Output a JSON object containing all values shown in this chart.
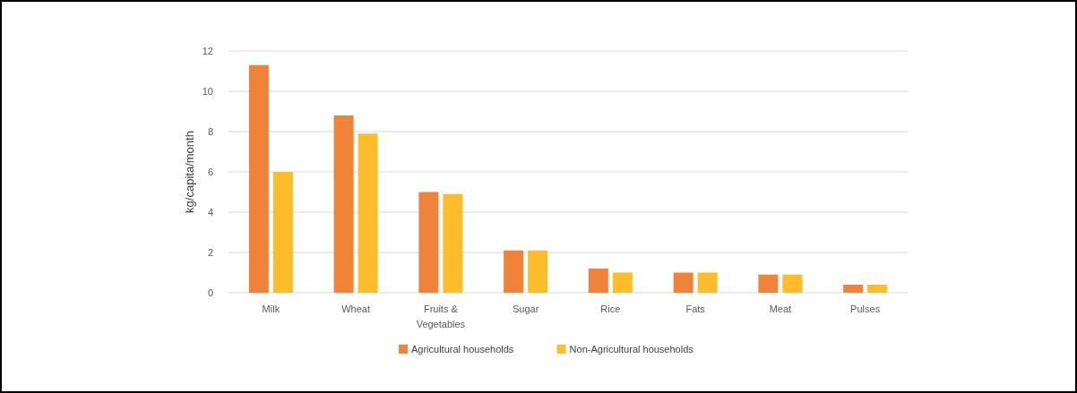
{
  "chart_data": {
    "type": "bar",
    "ylabel": "kg/capita/month",
    "categories": [
      "Milk",
      "Wheat",
      "Fruits & Vegetables",
      "Sugar",
      "Rice",
      "Fats",
      "Meat",
      "Pulses"
    ],
    "series": [
      {
        "name": "Agricultural households",
        "color": "#f0833a",
        "values": [
          11.3,
          8.8,
          5.0,
          2.1,
          1.2,
          1.0,
          0.9,
          0.4
        ]
      },
      {
        "name": "Non-Agricultural households",
        "color": "#fdbc2a",
        "values": [
          6.0,
          7.9,
          4.9,
          2.1,
          1.0,
          1.0,
          0.9,
          0.4
        ]
      }
    ],
    "ylim": [
      0,
      12
    ],
    "yticks": [
      0,
      2,
      4,
      6,
      8,
      10,
      12
    ],
    "grid": "y",
    "legend": "bottom"
  }
}
